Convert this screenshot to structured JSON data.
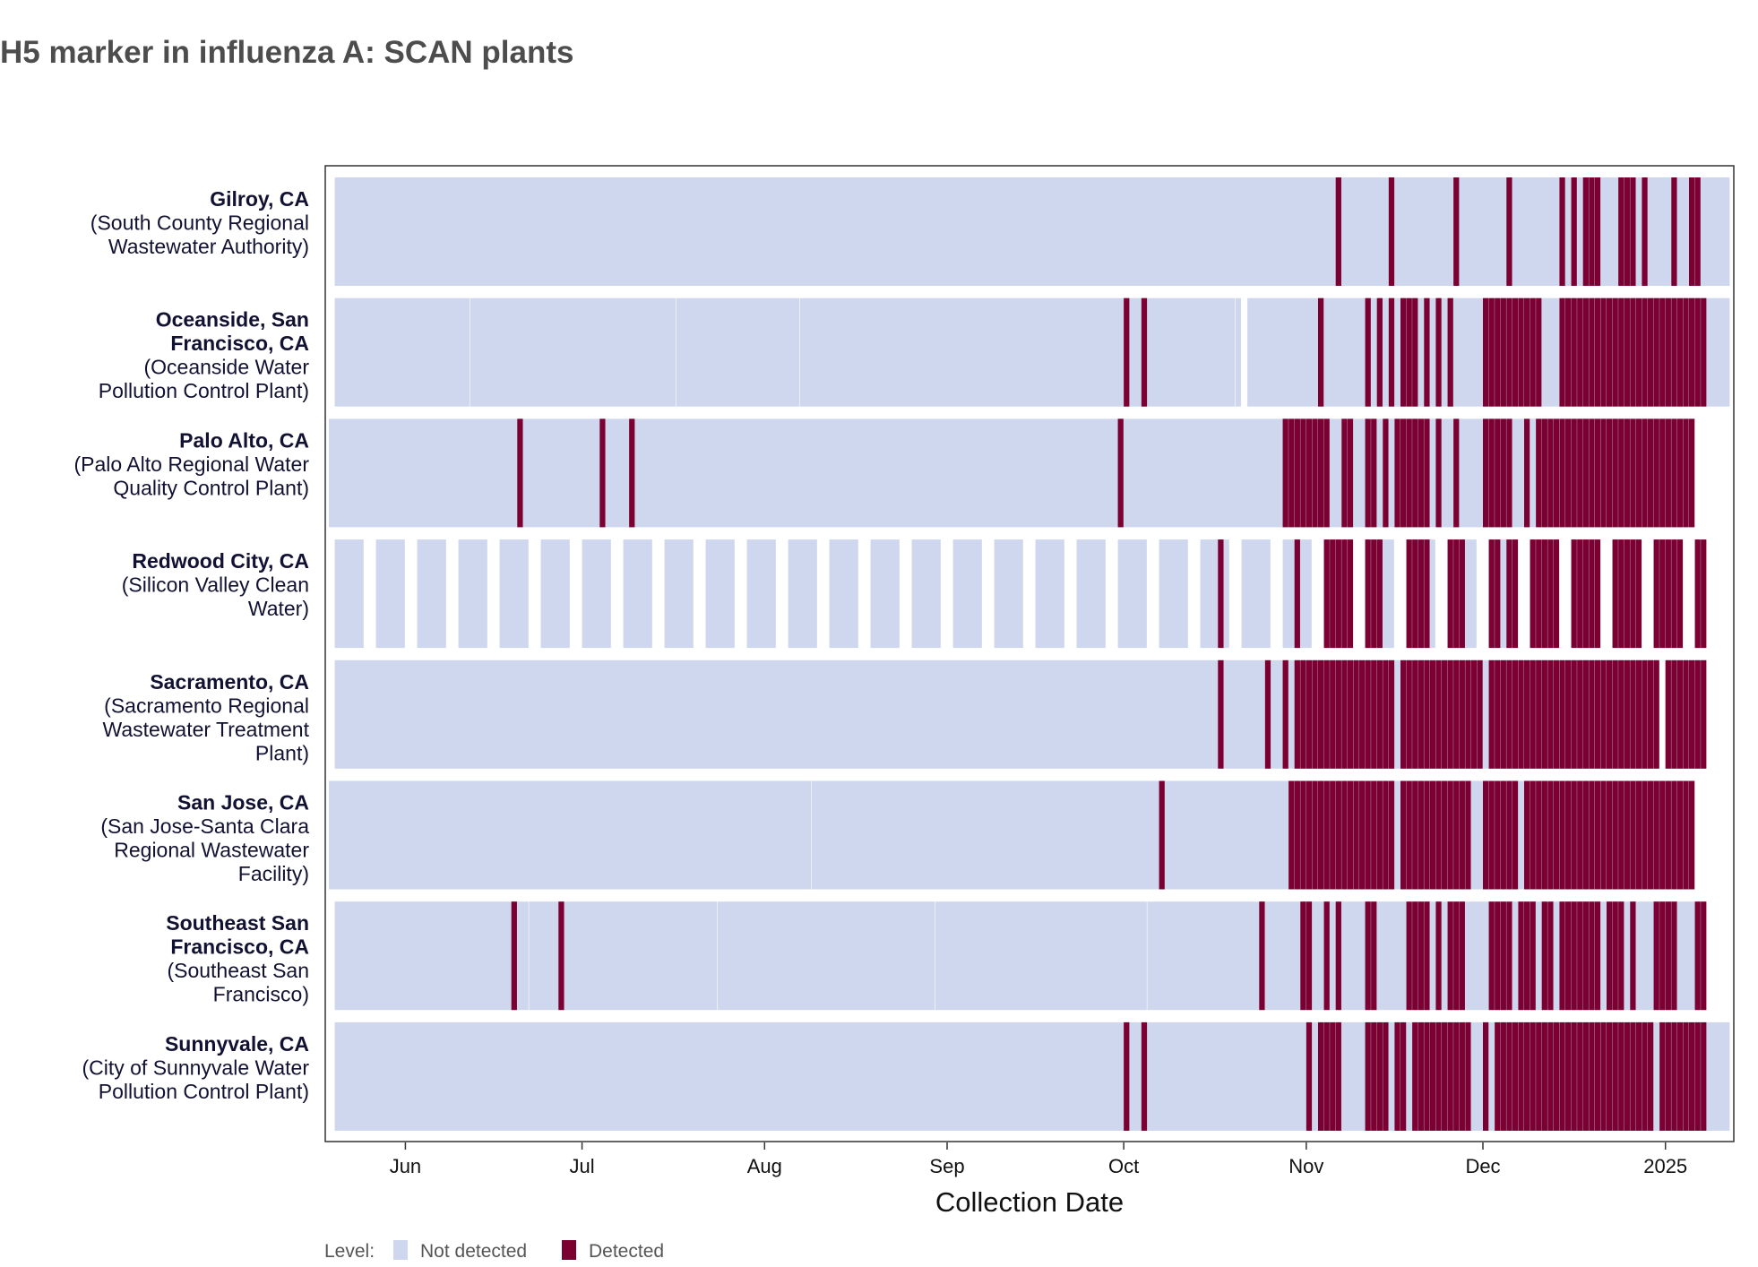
{
  "chart_data": {
    "type": "heatmap",
    "title": "H5 marker in influenza A: SCAN plants",
    "xlabel": "Collection Date",
    "ylabel": "",
    "x_range": [
      "2024-05-19",
      "2025-01-11"
    ],
    "x_ticks": [
      {
        "date": "2024-06-01",
        "label": "Jun"
      },
      {
        "date": "2024-07-01",
        "label": "Jul"
      },
      {
        "date": "2024-08-01",
        "label": "Aug"
      },
      {
        "date": "2024-09-01",
        "label": "Sep"
      },
      {
        "date": "2024-10-01",
        "label": "Oct"
      },
      {
        "date": "2024-11-01",
        "label": "Nov"
      },
      {
        "date": "2024-12-01",
        "label": "Dec"
      },
      {
        "date": "2025-01-01",
        "label": "2025"
      }
    ],
    "legend": {
      "title": "Level:",
      "position": "bottom-left",
      "entries": [
        {
          "label": "Not detected",
          "color": "#ced7ed"
        },
        {
          "label": "Detected",
          "color": "#7b0031"
        }
      ]
    },
    "colors": {
      "not_detected": "#ced7ed",
      "detected": "#7b0031",
      "gap": "#ffffff"
    },
    "rows": [
      {
        "name": "Gilroy, CA",
        "facility": [
          "(South County Regional",
          "Wastewater Authority)"
        ],
        "segments": [
          {
            "start": "2024-05-20",
            "end": "2025-01-11",
            "level": "Not detected"
          }
        ],
        "detected_days": [
          "2024-11-06",
          "2024-11-15",
          "2024-11-26",
          "2024-12-05",
          "2024-12-14",
          "2024-12-16",
          "2024-12-18",
          "2024-12-19",
          "2024-12-20",
          "2024-12-24",
          "2024-12-25",
          "2024-12-26",
          "2024-12-28",
          "2025-01-02",
          "2025-01-05",
          "2025-01-06"
        ]
      },
      {
        "name": "Oceanside, San",
        "name2": "Francisco, CA",
        "facility": [
          "(Oceanside Water",
          "Pollution Control Plant)"
        ],
        "segments": [
          {
            "start": "2024-05-20",
            "end": "2024-06-11",
            "level": "Not detected"
          },
          {
            "start": "2024-06-12",
            "end": "2024-07-16",
            "level": "Not detected"
          },
          {
            "start": "2024-07-17",
            "end": "2024-08-06",
            "level": "Not detected"
          },
          {
            "start": "2024-08-07",
            "end": "2024-10-19",
            "level": "Not detected"
          },
          {
            "start": "2024-10-20",
            "end": "2024-10-20",
            "level": "Not detected"
          },
          {
            "start": "2024-10-22",
            "end": "2025-01-11",
            "level": "Not detected"
          }
        ],
        "detected_days": [
          "2024-10-01",
          "2024-10-04",
          "2024-11-03",
          "2024-11-11",
          "2024-11-13",
          "2024-11-15",
          "2024-11-17",
          "2024-11-18",
          "2024-11-19",
          "2024-11-21",
          "2024-11-23",
          "2024-11-25",
          "2024-12-01",
          "2024-12-02",
          "2024-12-03",
          "2024-12-04",
          "2024-12-05",
          "2024-12-06",
          "2024-12-07",
          "2024-12-08",
          "2024-12-09",
          "2024-12-10",
          "2024-12-14",
          "2024-12-15",
          "2024-12-16",
          "2024-12-17",
          "2024-12-18",
          "2024-12-19",
          "2024-12-20",
          "2024-12-21",
          "2024-12-22",
          "2024-12-23",
          "2024-12-24",
          "2024-12-25",
          "2024-12-26",
          "2024-12-27",
          "2024-12-28",
          "2024-12-29",
          "2024-12-30",
          "2024-12-31",
          "2025-01-01",
          "2025-01-02",
          "2025-01-03",
          "2025-01-04",
          "2025-01-05",
          "2025-01-06",
          "2025-01-07"
        ]
      },
      {
        "name": "Palo Alto, CA",
        "facility": [
          "(Palo Alto Regional Water",
          "Quality Control Plant)"
        ],
        "segments": [
          {
            "start": "2024-05-19",
            "end": "2025-01-05",
            "level": "Not detected"
          }
        ],
        "detected_days": [
          "2024-06-20",
          "2024-07-04",
          "2024-07-09",
          "2024-09-30",
          "2024-10-28",
          "2024-10-29",
          "2024-10-30",
          "2024-10-31",
          "2024-11-01",
          "2024-11-02",
          "2024-11-03",
          "2024-11-04",
          "2024-11-07",
          "2024-11-08",
          "2024-11-11",
          "2024-11-12",
          "2024-11-14",
          "2024-11-16",
          "2024-11-17",
          "2024-11-18",
          "2024-11-19",
          "2024-11-20",
          "2024-11-21",
          "2024-11-23",
          "2024-11-26",
          "2024-12-01",
          "2024-12-02",
          "2024-12-03",
          "2024-12-04",
          "2024-12-05",
          "2024-12-08",
          "2024-12-10",
          "2024-12-11",
          "2024-12-12",
          "2024-12-13",
          "2024-12-14",
          "2024-12-15",
          "2024-12-16",
          "2024-12-17",
          "2024-12-18",
          "2024-12-19",
          "2024-12-20",
          "2024-12-21",
          "2024-12-22",
          "2024-12-23",
          "2024-12-24",
          "2024-12-25",
          "2024-12-26",
          "2024-12-27",
          "2024-12-28",
          "2024-12-29",
          "2024-12-30",
          "2024-12-31",
          "2025-01-01",
          "2025-01-02",
          "2025-01-03",
          "2025-01-04",
          "2025-01-05"
        ]
      },
      {
        "name": "Redwood City, CA",
        "facility": [
          "(Silicon Valley Clean",
          "Water)"
        ],
        "segments": [
          {
            "start": "2024-05-20",
            "end": "2024-05-24",
            "level": "Not detected"
          },
          {
            "start": "2024-05-27",
            "end": "2024-05-31",
            "level": "Not detected"
          },
          {
            "start": "2024-06-03",
            "end": "2024-06-07",
            "level": "Not detected"
          },
          {
            "start": "2024-06-10",
            "end": "2024-06-14",
            "level": "Not detected"
          },
          {
            "start": "2024-06-17",
            "end": "2024-06-21",
            "level": "Not detected"
          },
          {
            "start": "2024-06-24",
            "end": "2024-06-28",
            "level": "Not detected"
          },
          {
            "start": "2024-07-01",
            "end": "2024-07-05",
            "level": "Not detected"
          },
          {
            "start": "2024-07-08",
            "end": "2024-07-12",
            "level": "Not detected"
          },
          {
            "start": "2024-07-15",
            "end": "2024-07-19",
            "level": "Not detected"
          },
          {
            "start": "2024-07-22",
            "end": "2024-07-26",
            "level": "Not detected"
          },
          {
            "start": "2024-07-29",
            "end": "2024-08-02",
            "level": "Not detected"
          },
          {
            "start": "2024-08-05",
            "end": "2024-08-09",
            "level": "Not detected"
          },
          {
            "start": "2024-08-12",
            "end": "2024-08-16",
            "level": "Not detected"
          },
          {
            "start": "2024-08-19",
            "end": "2024-08-23",
            "level": "Not detected"
          },
          {
            "start": "2024-08-26",
            "end": "2024-08-30",
            "level": "Not detected"
          },
          {
            "start": "2024-09-02",
            "end": "2024-09-06",
            "level": "Not detected"
          },
          {
            "start": "2024-09-09",
            "end": "2024-09-13",
            "level": "Not detected"
          },
          {
            "start": "2024-09-16",
            "end": "2024-09-20",
            "level": "Not detected"
          },
          {
            "start": "2024-09-23",
            "end": "2024-09-27",
            "level": "Not detected"
          },
          {
            "start": "2024-09-30",
            "end": "2024-10-04",
            "level": "Not detected"
          },
          {
            "start": "2024-10-07",
            "end": "2024-10-11",
            "level": "Not detected"
          },
          {
            "start": "2024-10-14",
            "end": "2024-10-18",
            "level": "Not detected"
          },
          {
            "start": "2024-10-21",
            "end": "2024-10-25",
            "level": "Not detected"
          },
          {
            "start": "2024-10-28",
            "end": "2024-11-01",
            "level": "Not detected"
          },
          {
            "start": "2024-11-04",
            "end": "2024-11-08",
            "level": "Not detected"
          },
          {
            "start": "2024-11-11",
            "end": "2024-11-15",
            "level": "Not detected"
          },
          {
            "start": "2024-11-18",
            "end": "2024-11-22",
            "level": "Not detected"
          },
          {
            "start": "2024-11-25",
            "end": "2024-11-29",
            "level": "Not detected"
          },
          {
            "start": "2024-12-02",
            "end": "2024-12-06",
            "level": "Not detected"
          },
          {
            "start": "2024-12-09",
            "end": "2024-12-13",
            "level": "Not detected"
          },
          {
            "start": "2024-12-16",
            "end": "2024-12-20",
            "level": "Not detected"
          },
          {
            "start": "2024-12-23",
            "end": "2024-12-27",
            "level": "Not detected"
          },
          {
            "start": "2024-12-30",
            "end": "2025-01-03",
            "level": "Not detected"
          },
          {
            "start": "2025-01-06",
            "end": "2025-01-07",
            "level": "Not detected"
          }
        ],
        "detected_days": [
          "2024-10-17",
          "2024-10-30",
          "2024-11-04",
          "2024-11-05",
          "2024-11-06",
          "2024-11-07",
          "2024-11-08",
          "2024-11-11",
          "2024-11-12",
          "2024-11-13",
          "2024-11-18",
          "2024-11-19",
          "2024-11-20",
          "2024-11-21",
          "2024-11-25",
          "2024-11-26",
          "2024-11-27",
          "2024-12-02",
          "2024-12-03",
          "2024-12-05",
          "2024-12-06",
          "2024-12-09",
          "2024-12-10",
          "2024-12-11",
          "2024-12-12",
          "2024-12-13",
          "2024-12-16",
          "2024-12-17",
          "2024-12-18",
          "2024-12-19",
          "2024-12-20",
          "2024-12-23",
          "2024-12-24",
          "2024-12-25",
          "2024-12-26",
          "2024-12-27",
          "2024-12-30",
          "2024-12-31",
          "2025-01-01",
          "2025-01-02",
          "2025-01-03",
          "2025-01-06",
          "2025-01-07"
        ]
      },
      {
        "name": "Sacramento, CA",
        "facility": [
          "(Sacramento Regional",
          "Wastewater Treatment",
          "Plant)"
        ],
        "segments": [
          {
            "start": "2024-05-20",
            "end": "2024-12-30",
            "level": "Not detected"
          },
          {
            "start": "2025-01-01",
            "end": "2025-01-07",
            "level": "Not detected"
          }
        ],
        "detected_days": [
          "2024-10-17",
          "2024-10-25",
          "2024-10-28",
          "2024-10-30",
          "2024-10-31",
          "2024-11-01",
          "2024-11-02",
          "2024-11-03",
          "2024-11-04",
          "2024-11-05",
          "2024-11-06",
          "2024-11-07",
          "2024-11-08",
          "2024-11-09",
          "2024-11-10",
          "2024-11-11",
          "2024-11-12",
          "2024-11-13",
          "2024-11-14",
          "2024-11-15",
          "2024-11-17",
          "2024-11-18",
          "2024-11-19",
          "2024-11-20",
          "2024-11-21",
          "2024-11-22",
          "2024-11-23",
          "2024-11-24",
          "2024-11-25",
          "2024-11-26",
          "2024-11-27",
          "2024-11-28",
          "2024-11-29",
          "2024-11-30",
          "2024-12-02",
          "2024-12-03",
          "2024-12-04",
          "2024-12-05",
          "2024-12-06",
          "2024-12-07",
          "2024-12-08",
          "2024-12-09",
          "2024-12-10",
          "2024-12-11",
          "2024-12-12",
          "2024-12-13",
          "2024-12-14",
          "2024-12-15",
          "2024-12-16",
          "2024-12-17",
          "2024-12-18",
          "2024-12-19",
          "2024-12-20",
          "2024-12-21",
          "2024-12-22",
          "2024-12-23",
          "2024-12-24",
          "2024-12-25",
          "2024-12-26",
          "2024-12-27",
          "2024-12-28",
          "2024-12-29",
          "2024-12-30",
          "2025-01-01",
          "2025-01-02",
          "2025-01-03",
          "2025-01-04",
          "2025-01-05",
          "2025-01-06",
          "2025-01-07"
        ]
      },
      {
        "name": "San Jose, CA",
        "facility": [
          "(San Jose-Santa Clara",
          "Regional Wastewater",
          "Facility)"
        ],
        "segments": [
          {
            "start": "2024-05-19",
            "end": "2024-08-08",
            "level": "Not detected"
          },
          {
            "start": "2024-08-09",
            "end": "2025-01-05",
            "level": "Not detected"
          }
        ],
        "detected_days": [
          "2024-10-07",
          "2024-10-29",
          "2024-10-30",
          "2024-10-31",
          "2024-11-01",
          "2024-11-02",
          "2024-11-03",
          "2024-11-04",
          "2024-11-05",
          "2024-11-06",
          "2024-11-07",
          "2024-11-08",
          "2024-11-09",
          "2024-11-10",
          "2024-11-11",
          "2024-11-12",
          "2024-11-13",
          "2024-11-14",
          "2024-11-15",
          "2024-11-17",
          "2024-11-18",
          "2024-11-19",
          "2024-11-20",
          "2024-11-21",
          "2024-11-22",
          "2024-11-23",
          "2024-11-24",
          "2024-11-25",
          "2024-11-26",
          "2024-11-27",
          "2024-11-28",
          "2024-12-01",
          "2024-12-02",
          "2024-12-03",
          "2024-12-04",
          "2024-12-05",
          "2024-12-06",
          "2024-12-08",
          "2024-12-09",
          "2024-12-10",
          "2024-12-11",
          "2024-12-12",
          "2024-12-13",
          "2024-12-14",
          "2024-12-15",
          "2024-12-16",
          "2024-12-17",
          "2024-12-18",
          "2024-12-19",
          "2024-12-20",
          "2024-12-21",
          "2024-12-22",
          "2024-12-23",
          "2024-12-24",
          "2024-12-25",
          "2024-12-26",
          "2024-12-27",
          "2024-12-28",
          "2024-12-29",
          "2024-12-30",
          "2024-12-31",
          "2025-01-01",
          "2025-01-02",
          "2025-01-03",
          "2025-01-04",
          "2025-01-05"
        ]
      },
      {
        "name": "Southeast San",
        "name2": "Francisco, CA",
        "facility": [
          "(Southeast San",
          "Francisco)"
        ],
        "segments": [
          {
            "start": "2024-05-20",
            "end": "2024-06-21",
            "level": "Not detected"
          },
          {
            "start": "2024-06-22",
            "end": "2024-07-23",
            "level": "Not detected"
          },
          {
            "start": "2024-07-24",
            "end": "2024-08-29",
            "level": "Not detected"
          },
          {
            "start": "2024-08-30",
            "end": "2024-10-04",
            "level": "Not detected"
          },
          {
            "start": "2024-10-05",
            "end": "2025-01-07",
            "level": "Not detected"
          }
        ],
        "detected_days": [
          "2024-06-19",
          "2024-06-27",
          "2024-10-24",
          "2024-10-31",
          "2024-11-01",
          "2024-11-04",
          "2024-11-06",
          "2024-11-11",
          "2024-11-12",
          "2024-11-18",
          "2024-11-19",
          "2024-11-20",
          "2024-11-21",
          "2024-11-23",
          "2024-11-25",
          "2024-11-26",
          "2024-11-27",
          "2024-12-02",
          "2024-12-03",
          "2024-12-04",
          "2024-12-05",
          "2024-12-07",
          "2024-12-08",
          "2024-12-09",
          "2024-12-11",
          "2024-12-12",
          "2024-12-14",
          "2024-12-15",
          "2024-12-16",
          "2024-12-17",
          "2024-12-18",
          "2024-12-19",
          "2024-12-20",
          "2024-12-22",
          "2024-12-23",
          "2024-12-24",
          "2024-12-26",
          "2024-12-30",
          "2024-12-31",
          "2025-01-01",
          "2025-01-02",
          "2025-01-06",
          "2025-01-07"
        ]
      },
      {
        "name": "Sunnyvale, CA",
        "facility": [
          "(City of Sunnyvale Water",
          "Pollution Control Plant)"
        ],
        "segments": [
          {
            "start": "2024-05-20",
            "end": "2025-01-11",
            "level": "Not detected"
          }
        ],
        "detected_days": [
          "2024-10-01",
          "2024-10-04",
          "2024-11-01",
          "2024-11-03",
          "2024-11-04",
          "2024-11-05",
          "2024-11-06",
          "2024-11-11",
          "2024-11-12",
          "2024-11-13",
          "2024-11-14",
          "2024-11-16",
          "2024-11-17",
          "2024-11-19",
          "2024-11-20",
          "2024-11-21",
          "2024-11-22",
          "2024-11-23",
          "2024-11-24",
          "2024-11-25",
          "2024-11-26",
          "2024-11-27",
          "2024-11-28",
          "2024-12-01",
          "2024-12-03",
          "2024-12-04",
          "2024-12-05",
          "2024-12-06",
          "2024-12-07",
          "2024-12-08",
          "2024-12-09",
          "2024-12-10",
          "2024-12-11",
          "2024-12-12",
          "2024-12-13",
          "2024-12-14",
          "2024-12-15",
          "2024-12-16",
          "2024-12-17",
          "2024-12-18",
          "2024-12-19",
          "2024-12-20",
          "2024-12-21",
          "2024-12-22",
          "2024-12-23",
          "2024-12-24",
          "2024-12-25",
          "2024-12-26",
          "2024-12-27",
          "2024-12-28",
          "2024-12-29",
          "2024-12-31",
          "2025-01-01",
          "2025-01-02",
          "2025-01-03",
          "2025-01-04",
          "2025-01-05",
          "2025-01-06",
          "2025-01-07"
        ]
      }
    ]
  }
}
